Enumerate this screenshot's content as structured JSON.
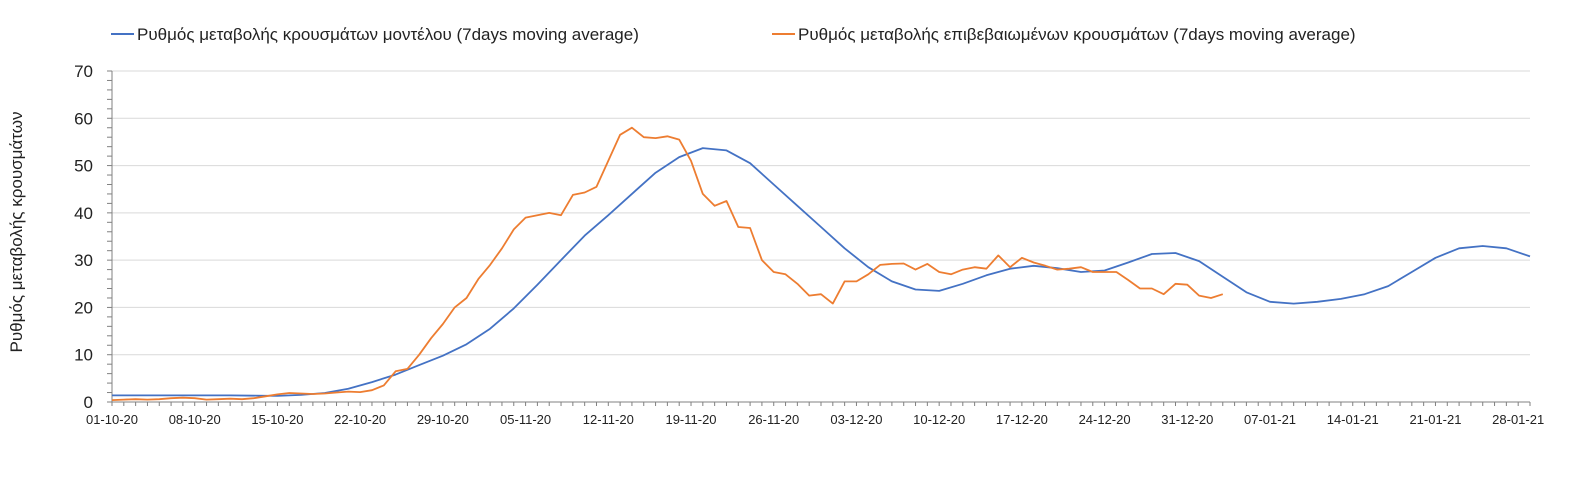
{
  "chart_data": {
    "type": "line",
    "title": "",
    "xlabel": "",
    "ylabel": "Ρυθμός μεταβολής κρουσμάτων",
    "ylim": [
      0,
      70
    ],
    "yticks": [
      0,
      10,
      20,
      30,
      40,
      50,
      60,
      70
    ],
    "xlim": [
      0,
      120
    ],
    "x_start_date": "01-10-20",
    "xtick_labels": [
      "01-10-20",
      "08-10-20",
      "15-10-20",
      "22-10-20",
      "29-10-20",
      "05-11-20",
      "12-11-20",
      "19-11-20",
      "26-11-20",
      "03-12-20",
      "10-12-20",
      "17-12-20",
      "24-12-20",
      "31-12-20",
      "07-01-21",
      "14-01-21",
      "21-01-21",
      "28-01-21"
    ],
    "grid": true,
    "legend_position": "top",
    "colors": {
      "model": "#4472c4",
      "confirmed": "#ed7d31",
      "grid": "#d9d9d9",
      "axis": "#808080"
    },
    "series": [
      {
        "name": "Ρυθμός μεταβολής κρουσμάτων μοντέλου (7days moving average)",
        "color": "#4472c4",
        "x": [
          0,
          5,
          10,
          14,
          16,
          18,
          20,
          22,
          24,
          26,
          28,
          30,
          32,
          34,
          36,
          38,
          40,
          42,
          44,
          46,
          48,
          50,
          52,
          54,
          56,
          58,
          60,
          62,
          64,
          66,
          68,
          70,
          72,
          74,
          76,
          78,
          80,
          82,
          84,
          86,
          88,
          90,
          92,
          94,
          96,
          98,
          100,
          102,
          104,
          106,
          108,
          110,
          112,
          114,
          116,
          118,
          120
        ],
        "values": [
          1.4,
          1.4,
          1.4,
          1.3,
          1.5,
          1.9,
          2.8,
          4.2,
          5.8,
          7.8,
          9.8,
          12.2,
          15.5,
          19.8,
          24.8,
          30.0,
          35.2,
          39.5,
          44.0,
          48.5,
          51.8,
          53.7,
          53.2,
          50.5,
          46.0,
          41.5,
          37.0,
          32.5,
          28.5,
          25.5,
          23.8,
          23.5,
          25.0,
          26.8,
          28.2,
          28.8,
          28.3,
          27.5,
          27.8,
          29.5,
          31.3,
          31.5,
          29.8,
          26.5,
          23.2,
          21.2,
          20.8,
          21.2,
          21.8,
          22.8,
          24.5,
          27.5,
          30.5,
          32.5,
          33.0,
          32.5,
          30.8
        ]
      },
      {
        "name": "Ρυθμός μεταβολής επιβεβαιωμένων κρουσμάτων (7days moving average)",
        "color": "#ed7d31",
        "x": [
          0,
          1,
          2,
          3,
          4,
          5,
          6,
          7,
          8,
          9,
          10,
          11,
          12,
          13,
          14,
          15,
          16,
          17,
          18,
          19,
          20,
          21,
          22,
          23,
          24,
          25,
          26,
          27,
          28,
          29,
          30,
          31,
          32,
          33,
          34,
          35,
          36,
          37,
          38,
          39,
          40,
          41,
          42,
          43,
          44,
          45,
          46,
          47,
          48,
          49,
          50,
          51,
          52,
          53,
          54,
          55,
          56,
          57,
          58,
          59,
          60,
          61,
          62,
          63,
          64,
          65,
          66,
          67,
          68,
          69,
          70,
          71,
          72,
          73,
          74,
          75,
          76,
          77,
          78,
          79,
          80,
          81,
          82,
          83,
          84,
          85,
          86,
          87,
          88,
          89,
          90,
          91,
          92,
          93,
          94,
          95,
          96,
          97,
          98,
          99,
          100,
          101,
          102,
          103,
          104,
          105,
          106,
          107,
          108
        ],
        "values": [
          0.4,
          0.5,
          0.6,
          0.5,
          0.6,
          0.8,
          0.9,
          0.8,
          0.5,
          0.6,
          0.7,
          0.6,
          0.8,
          1.2,
          1.6,
          1.9,
          1.8,
          1.7,
          1.8,
          2.0,
          2.2,
          2.1,
          2.5,
          3.5,
          6.5,
          7.0,
          10.0,
          13.5,
          16.5,
          20.0,
          22.0,
          26.0,
          29.0,
          32.5,
          36.5,
          39.0,
          39.5,
          40.0,
          39.5,
          43.8,
          44.3,
          45.5,
          51.0,
          56.5,
          58.0,
          56.0,
          55.8,
          56.2,
          55.5,
          51.0,
          44.0,
          41.5,
          42.5,
          37.0,
          36.8,
          30.0,
          27.5,
          27.0,
          25.0,
          22.5,
          22.8,
          20.8,
          25.5,
          25.5,
          27.0,
          29.0,
          29.2,
          29.3,
          28.0,
          29.2,
          27.5,
          27.0,
          28.0,
          28.5,
          28.2,
          31.0,
          28.5,
          30.5,
          29.5,
          28.8,
          28.0,
          28.2,
          28.5,
          27.5,
          27.5,
          27.5,
          25.8,
          24.0,
          24.0,
          22.8,
          25.0,
          24.8,
          22.5,
          22.0,
          22.8,
          null,
          null,
          null,
          null,
          null,
          null,
          null,
          null,
          null,
          null,
          null,
          null,
          null,
          null
        ]
      }
    ]
  }
}
